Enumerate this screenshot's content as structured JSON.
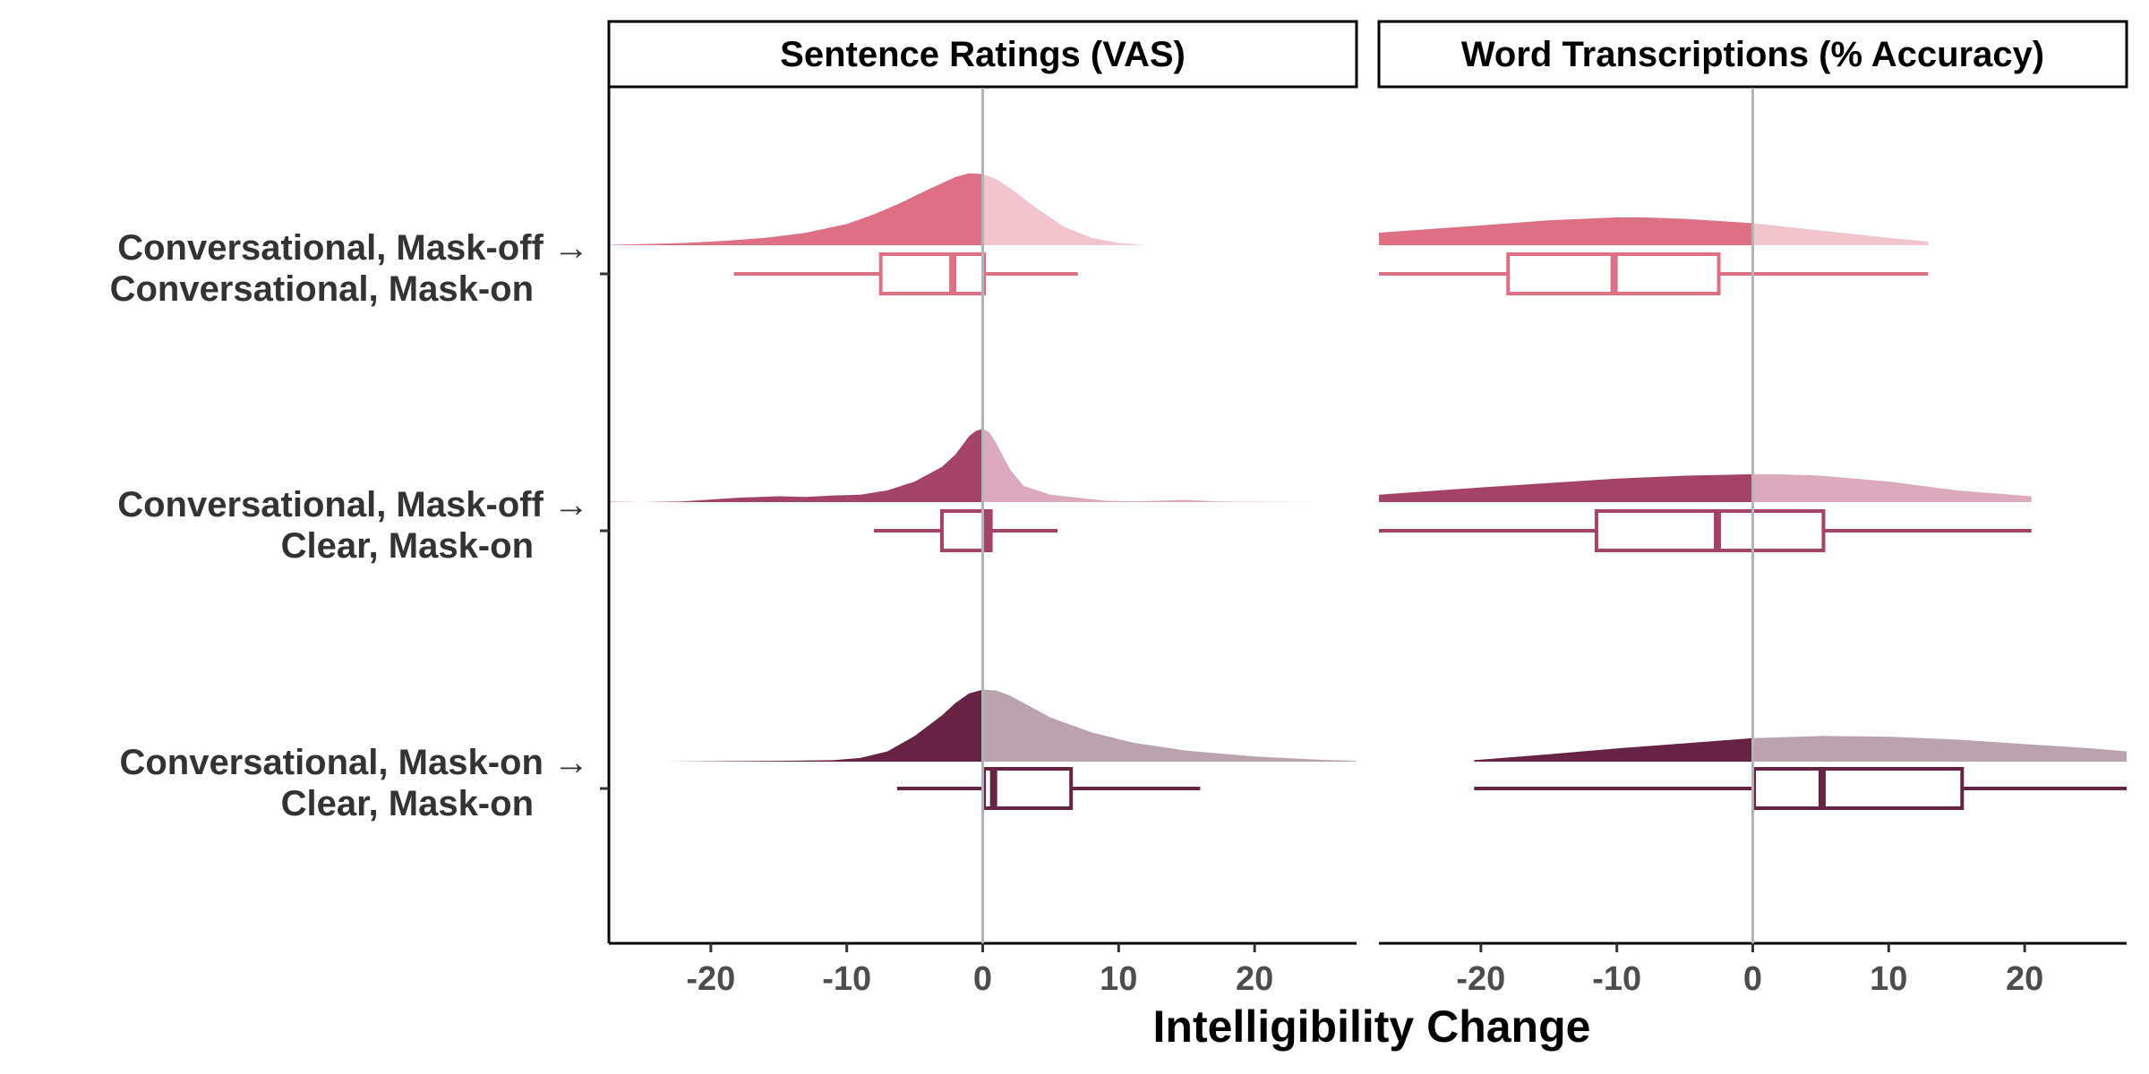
{
  "chart_data": {
    "type": "raincloud",
    "xlabel": "Intelligibility Change",
    "xlim": [
      -27.5,
      27.5
    ],
    "xticks": [
      -20,
      -10,
      0,
      10,
      20
    ],
    "xtick_labels": [
      "-20",
      "-10",
      "0",
      "10",
      "20"
    ],
    "reference_line": 0,
    "grid": false,
    "legend": "none",
    "panels": [
      {
        "title": "Sentence Ratings (VAS)"
      },
      {
        "title": "Word Transcriptions (% Accuracy)"
      }
    ],
    "categories": [
      {
        "line1": "Conversational, Mask-off →",
        "line2": "Conversational, Mask-on",
        "color": "#dd7085",
        "light": "#f2c4cd"
      },
      {
        "line1": "Conversational, Mask-off →",
        "line2": "Clear, Mask-on",
        "color": "#a44268",
        "light": "#dbabbd"
      },
      {
        "line1": "Conversational, Mask-on →",
        "line2": "Clear, Mask-on",
        "color": "#662344",
        "light": "#baa2af"
      }
    ],
    "series": [
      {
        "panel": 0,
        "category": 0,
        "density": {
          "x": [
            -27.5,
            -25,
            -22,
            -19,
            -16,
            -13,
            -10,
            -8,
            -6,
            -4,
            -2,
            -1,
            0,
            1,
            2,
            4,
            6,
            8,
            10,
            12
          ],
          "y": [
            0.005,
            0.015,
            0.03,
            0.06,
            0.1,
            0.17,
            0.29,
            0.42,
            0.58,
            0.76,
            0.93,
            0.98,
            0.97,
            0.9,
            0.78,
            0.5,
            0.25,
            0.1,
            0.03,
            0
          ]
        },
        "box": {
          "whisker_low": -18.3,
          "q1": -7.5,
          "median": -2.2,
          "q3": 0.1,
          "whisker_high": 7
        }
      },
      {
        "panel": 0,
        "category": 1,
        "density": {
          "x": [
            -27.5,
            -25,
            -22,
            -18,
            -15,
            -13,
            -11,
            -9,
            -7,
            -5,
            -3,
            -2,
            -1,
            -0.5,
            0,
            0.5,
            1,
            2,
            3,
            5,
            7,
            9,
            11,
            13,
            15,
            17,
            19,
            22,
            25
          ],
          "y": [
            0.005,
            0,
            0.01,
            0.06,
            0.08,
            0.07,
            0.09,
            0.1,
            0.16,
            0.28,
            0.48,
            0.65,
            0.9,
            0.97,
            1,
            0.95,
            0.8,
            0.45,
            0.22,
            0.1,
            0.06,
            0.02,
            0.01,
            0.02,
            0.03,
            0.01,
            0.005,
            0.003,
            0
          ]
        },
        "box": {
          "whisker_low": -8,
          "q1": -3,
          "median": 0.3,
          "q3": 0.6,
          "whisker_high": 5.5
        }
      },
      {
        "panel": 0,
        "category": 2,
        "density": {
          "x": [
            -23.5,
            -20,
            -15,
            -11,
            -9,
            -7,
            -5,
            -3,
            -2,
            -1,
            0,
            1,
            2,
            3,
            5,
            8,
            11,
            15,
            20,
            25,
            27.5
          ],
          "y": [
            0,
            0.005,
            0.01,
            0.02,
            0.05,
            0.14,
            0.35,
            0.63,
            0.8,
            0.93,
            0.98,
            0.97,
            0.9,
            0.8,
            0.6,
            0.4,
            0.26,
            0.15,
            0.07,
            0.025,
            0.01
          ]
        },
        "box": {
          "whisker_low": -6.3,
          "q1": 0.1,
          "median": 0.8,
          "q3": 6.5,
          "whisker_high": 16
        }
      },
      {
        "panel": 1,
        "category": 0,
        "density": {
          "x": [
            -27.5,
            -20,
            -15,
            -10,
            -8,
            -5,
            0,
            5,
            10,
            12.9
          ],
          "y": [
            0.17,
            0.27,
            0.34,
            0.38,
            0.38,
            0.36,
            0.3,
            0.2,
            0.1,
            0.05
          ]
        },
        "box": {
          "whisker_low": -27.5,
          "q1": -18,
          "median": -10.2,
          "q3": -2.5,
          "whisker_high": 12.9
        }
      },
      {
        "panel": 1,
        "category": 1,
        "density": {
          "x": [
            -27.5,
            -20,
            -10,
            -5,
            0,
            2,
            5,
            10,
            15,
            20.5
          ],
          "y": [
            0.1,
            0.2,
            0.32,
            0.36,
            0.38,
            0.38,
            0.36,
            0.28,
            0.16,
            0.08
          ]
        },
        "box": {
          "whisker_low": -27.5,
          "q1": -11.5,
          "median": -2.6,
          "q3": 5.2,
          "whisker_high": 20.5
        }
      },
      {
        "panel": 1,
        "category": 2,
        "density": {
          "x": [
            -20.5,
            -15,
            -10,
            -5,
            0,
            5,
            10,
            15,
            20,
            25,
            27.5
          ],
          "y": [
            0.02,
            0.1,
            0.18,
            0.25,
            0.32,
            0.35,
            0.34,
            0.3,
            0.24,
            0.18,
            0.14
          ]
        },
        "box": {
          "whisker_low": -20.5,
          "q1": 0.1,
          "median": 5.1,
          "q3": 15.4,
          "whisker_high": 27.5
        }
      }
    ]
  }
}
